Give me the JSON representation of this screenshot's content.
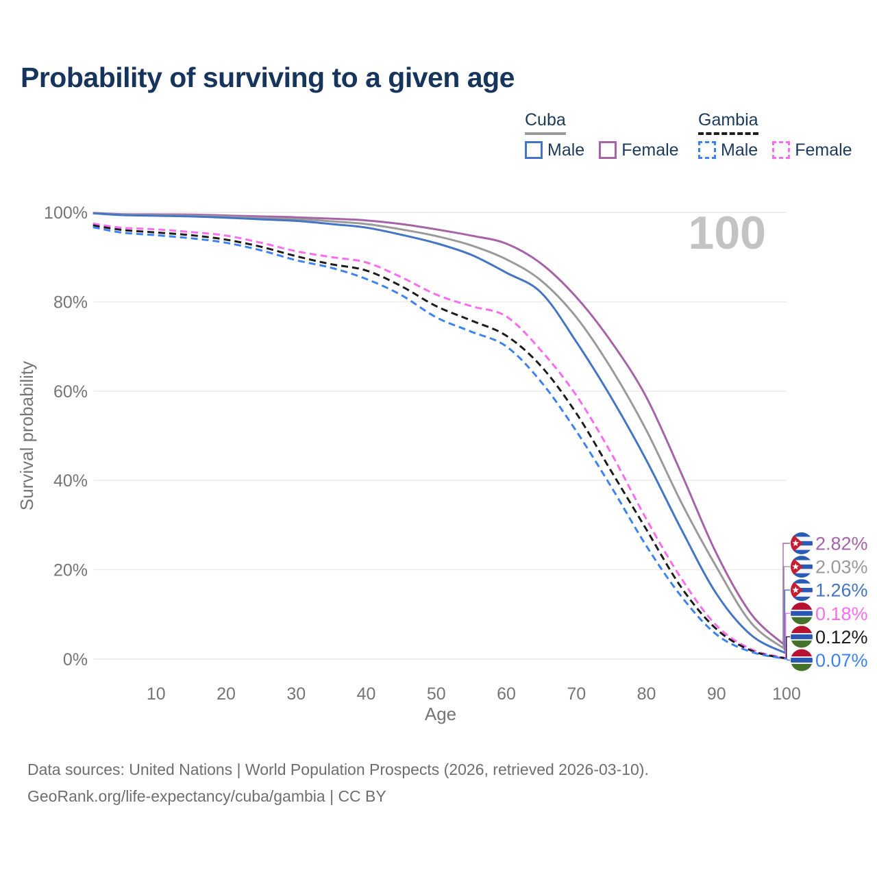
{
  "page": {
    "title": "Probability of surviving to a given age",
    "watermark_age": "100",
    "footer_line1": "Data sources: United Nations | World Population Prospects (2026, retrieved 2026-03-10).",
    "footer_line2": "GeoRank.org/life-expectancy/cuba/gambia | CC BY"
  },
  "colors": {
    "title_text": "#17345c",
    "legend_text": "#1b3a5e",
    "axis_text": "#757575",
    "gridline": "#e9e9e9",
    "watermark": "#c3c3c3",
    "footer_text": "#6e6e6e",
    "cuba_flag": {
      "blue": "#2a5ab4",
      "red": "#c21f35",
      "white": "#f5f5f5"
    },
    "gambia_flag": {
      "red": "#b5122f",
      "blue": "#2b57b2",
      "green": "#45722b",
      "white": "#f5f5f5"
    }
  },
  "legend": {
    "groups": [
      {
        "label": "Cuba",
        "line_style": "solid",
        "line_color": "#9a9a9a",
        "items": [
          {
            "label": "Male",
            "color": "#4474c5",
            "style": "solid"
          },
          {
            "label": "Female",
            "color": "#a763a8",
            "style": "solid"
          }
        ]
      },
      {
        "label": "Gambia",
        "line_style": "dashed",
        "line_color": "#1c1c1c",
        "items": [
          {
            "label": "Male",
            "color": "#3d82f2",
            "style": "dashed"
          },
          {
            "label": "Female",
            "color": "#fb6cf0",
            "style": "dashed"
          }
        ]
      }
    ]
  },
  "chart_data": {
    "type": "line",
    "title": "Probability of surviving to a given age",
    "xlabel": "Age",
    "ylabel": "Survival probability",
    "xlim": [
      1,
      100
    ],
    "ylim": [
      0,
      100
    ],
    "x_ticks": [
      10,
      20,
      30,
      40,
      50,
      60,
      70,
      80,
      90,
      100
    ],
    "y_ticks": [
      0,
      20,
      40,
      60,
      80,
      100
    ],
    "y_tick_suffix": "%",
    "grid": "horizontal",
    "legend_position": "top-right",
    "ages": [
      1,
      5,
      10,
      15,
      20,
      25,
      30,
      35,
      40,
      45,
      50,
      55,
      60,
      65,
      70,
      75,
      80,
      85,
      90,
      95,
      100
    ],
    "series": [
      {
        "name": "Cuba Female",
        "country": "Cuba",
        "sex": "Female",
        "color": "#a763a8",
        "dash": false,
        "end_label": "2.82%",
        "values": [
          99.9,
          99.6,
          99.55,
          99.5,
          99.3,
          99.1,
          98.9,
          98.6,
          98.2,
          97.4,
          96.2,
          94.8,
          93.0,
          88.5,
          81.0,
          71.0,
          58.6,
          41.5,
          23.6,
          10.0,
          2.82
        ]
      },
      {
        "name": "Cuba",
        "country": "Cuba",
        "sex": "Both",
        "color": "#9a9a9a",
        "dash": false,
        "end_label": "2.03%",
        "values": [
          99.85,
          99.5,
          99.4,
          99.3,
          99.05,
          98.75,
          98.5,
          98.0,
          97.4,
          96.2,
          94.7,
          92.6,
          89.5,
          84.7,
          76.5,
          65.0,
          51.2,
          35.0,
          20.6,
          8.0,
          2.03
        ]
      },
      {
        "name": "Cuba Male",
        "country": "Cuba",
        "sex": "Male",
        "color": "#4474c5",
        "dash": false,
        "end_label": "1.26%",
        "values": [
          99.8,
          99.4,
          99.25,
          99.1,
          98.8,
          98.45,
          98.1,
          97.4,
          96.6,
          95.0,
          93.1,
          90.5,
          86.5,
          82.0,
          71.0,
          58.5,
          44.5,
          29.0,
          14.6,
          5.3,
          1.26
        ]
      },
      {
        "name": "Gambia Female",
        "country": "Gambia",
        "sex": "Female",
        "color": "#fb6cf0",
        "dash": true,
        "end_label": "0.18%",
        "values": [
          97.5,
          96.6,
          96.2,
          95.6,
          94.8,
          93.2,
          91.3,
          90.0,
          88.8,
          85.5,
          81.6,
          79.0,
          76.7,
          69.0,
          59.0,
          46.0,
          31.3,
          18.0,
          7.5,
          2.2,
          0.18
        ]
      },
      {
        "name": "Gambia",
        "country": "Gambia",
        "sex": "Both",
        "color": "#1c1c1c",
        "dash": true,
        "end_label": "0.12%",
        "values": [
          97.1,
          96.1,
          95.5,
          94.9,
          93.9,
          92.3,
          90.2,
          88.4,
          87.0,
          83.5,
          79.0,
          75.8,
          72.4,
          65.5,
          55.0,
          42.0,
          29.0,
          16.0,
          6.7,
          1.9,
          0.12
        ]
      },
      {
        "name": "Gambia Male",
        "country": "Gambia",
        "sex": "Male",
        "color": "#3d82f2",
        "dash": true,
        "end_label": "0.07%",
        "values": [
          96.7,
          95.5,
          94.9,
          94.2,
          93.2,
          91.5,
          89.3,
          87.6,
          85.1,
          81.5,
          76.5,
          73.3,
          70.0,
          62.0,
          51.0,
          38.5,
          25.3,
          14.0,
          5.5,
          1.6,
          0.07
        ]
      }
    ]
  }
}
